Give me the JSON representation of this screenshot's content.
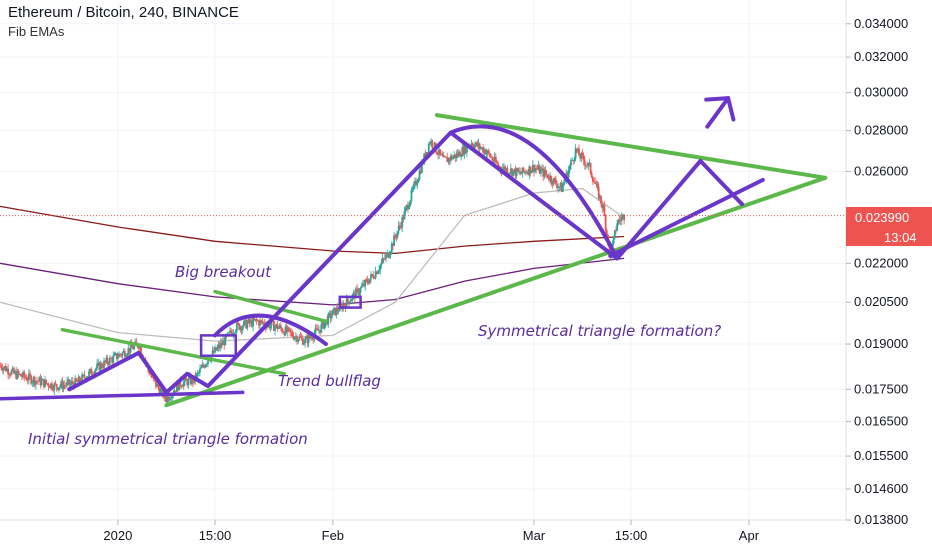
{
  "header": {
    "title": "Ethereum / Bitcoin, 240, BINANCE",
    "subtitle": "Fib EMAs"
  },
  "price_axis": {
    "ticks": [
      "0.034000",
      "0.032000",
      "0.030000",
      "0.028000",
      "0.026000",
      "0.022000",
      "0.020500",
      "0.019000",
      "0.017500",
      "0.016500",
      "0.015500",
      "0.014600",
      "0.013800"
    ],
    "current_price": "0.023990",
    "countdown": "13:04"
  },
  "time_axis": {
    "ticks": [
      "2020",
      "15:00",
      "Feb",
      "Mar",
      "15:00",
      "Apr"
    ]
  },
  "annotations": {
    "big_breakout": "Big breakout",
    "trend_bullflag": "Trend bullflag",
    "symmetrical_triangle": "Symmetrical triangle formation?",
    "initial_triangle": "Initial symmetrical triangle formation"
  },
  "colors": {
    "up": "#26a69a",
    "down": "#ef5350",
    "pattern_purple": "#6a35c9",
    "trendline_green": "#5cb84a",
    "ema_dark_red": "#8b1a1a",
    "ema_purple": "#6b1f7a",
    "ema_grey": "#bdbdbd",
    "price_line": "#ef5350"
  },
  "chart_data": {
    "type": "candlestick",
    "symbol": "ETHBTC",
    "interval": "240",
    "exchange": "BINANCE",
    "y_scale": "log",
    "ylim": [
      0.0138,
      0.0355
    ],
    "x_range": [
      "2019-12-15",
      "2020-04-15"
    ],
    "x_ticks": [
      {
        "date": "2020-01-01",
        "label": "2020"
      },
      {
        "date": "2020-01-15",
        "label": "15:00"
      },
      {
        "date": "2020-02-01",
        "label": "Feb"
      },
      {
        "date": "2020-03-01",
        "label": "Mar"
      },
      {
        "date": "2020-03-15",
        "label": "15:00"
      },
      {
        "date": "2020-04-01",
        "label": "Apr"
      }
    ],
    "last_price": 0.02399,
    "price_path": [
      [
        "2019-12-15",
        0.0183
      ],
      [
        "2019-12-17",
        0.018
      ],
      [
        "2019-12-20",
        0.0178
      ],
      [
        "2019-12-23",
        0.0176
      ],
      [
        "2019-12-26",
        0.0177
      ],
      [
        "2019-12-29",
        0.0182
      ],
      [
        "2020-01-01",
        0.0186
      ],
      [
        "2020-01-04",
        0.019
      ],
      [
        "2020-01-06",
        0.0178
      ],
      [
        "2020-01-08",
        0.0172
      ],
      [
        "2020-01-10",
        0.0177
      ],
      [
        "2020-01-12",
        0.0178
      ],
      [
        "2020-01-14",
        0.0185
      ],
      [
        "2020-01-16",
        0.019
      ],
      [
        "2020-01-18",
        0.0196
      ],
      [
        "2020-01-21",
        0.0198
      ],
      [
        "2020-01-24",
        0.0196
      ],
      [
        "2020-01-28",
        0.0191
      ],
      [
        "2020-01-30",
        0.0195
      ],
      [
        "2020-02-01",
        0.0201
      ],
      [
        "2020-02-03",
        0.0205
      ],
      [
        "2020-02-05",
        0.021
      ],
      [
        "2020-02-07",
        0.0216
      ],
      [
        "2020-02-09",
        0.0224
      ],
      [
        "2020-02-11",
        0.0238
      ],
      [
        "2020-02-13",
        0.0255
      ],
      [
        "2020-02-15",
        0.0275
      ],
      [
        "2020-02-17",
        0.0265
      ],
      [
        "2020-02-19",
        0.0268
      ],
      [
        "2020-02-21",
        0.0274
      ],
      [
        "2020-02-23",
        0.027
      ],
      [
        "2020-02-25",
        0.0262
      ],
      [
        "2020-02-28",
        0.0259
      ],
      [
        "2020-03-01",
        0.0262
      ],
      [
        "2020-03-03",
        0.0258
      ],
      [
        "2020-03-05",
        0.0252
      ],
      [
        "2020-03-07",
        0.027
      ],
      [
        "2020-03-09",
        0.0262
      ],
      [
        "2020-03-11",
        0.0243
      ],
      [
        "2020-03-12",
        0.0222
      ],
      [
        "2020-03-13",
        0.0237
      ],
      [
        "2020-03-14",
        0.02399
      ]
    ],
    "ema_red": [
      [
        "2019-12-15",
        0.0244
      ],
      [
        "2020-01-01",
        0.0235
      ],
      [
        "2020-01-15",
        0.0229
      ],
      [
        "2020-02-01",
        0.0225
      ],
      [
        "2020-02-10",
        0.0224
      ],
      [
        "2020-02-20",
        0.0227
      ],
      [
        "2020-03-01",
        0.0229
      ],
      [
        "2020-03-14",
        0.0231
      ]
    ],
    "ema_purple": [
      [
        "2019-12-15",
        0.022
      ],
      [
        "2020-01-01",
        0.0212
      ],
      [
        "2020-01-15",
        0.0207
      ],
      [
        "2020-02-01",
        0.0204
      ],
      [
        "2020-02-10",
        0.0206
      ],
      [
        "2020-02-20",
        0.0213
      ],
      [
        "2020-03-01",
        0.0218
      ],
      [
        "2020-03-14",
        0.0222
      ]
    ],
    "ema_grey": [
      [
        "2019-12-15",
        0.0205
      ],
      [
        "2020-01-01",
        0.0194
      ],
      [
        "2020-01-15",
        0.0191
      ],
      [
        "2020-02-01",
        0.0193
      ],
      [
        "2020-02-10",
        0.0205
      ],
      [
        "2020-02-20",
        0.024
      ],
      [
        "2020-03-01",
        0.025
      ],
      [
        "2020-03-08",
        0.0252
      ],
      [
        "2020-03-14",
        0.0239
      ]
    ],
    "drawings": {
      "purple_path": [
        [
          "2019-12-25",
          0.0175
        ],
        [
          "2020-01-04",
          0.0187
        ],
        [
          "2020-01-08",
          0.0174
        ],
        [
          "2020-01-11",
          0.018
        ],
        [
          "2020-01-14",
          0.0176
        ],
        [
          "2020-02-18",
          0.0279
        ],
        [
          "2020-03-13",
          0.0222
        ],
        [
          "2020-03-25",
          0.0265
        ],
        [
          "2020-03-31",
          0.0245
        ]
      ],
      "purple_arrow": [
        [
          "2020-03-26",
          0.0282
        ],
        [
          "2020-03-29",
          0.0297
        ]
      ],
      "green_upper": [
        [
          "2020-02-16",
          0.0288
        ],
        [
          "2020-04-12",
          0.0257
        ]
      ],
      "green_lower": [
        [
          "2020-01-08",
          0.017
        ],
        [
          "2020-04-12",
          0.0257
        ]
      ],
      "initial_upper": [
        [
          "2019-12-24",
          0.0195
        ],
        [
          "2020-01-25",
          0.018
        ]
      ],
      "initial_lower": [
        [
          "2019-12-15",
          0.0172
        ],
        [
          "2020-01-19",
          0.0174
        ]
      ],
      "flag_upper": [
        [
          "2020-01-15",
          0.0209
        ],
        [
          "2020-01-31",
          0.0198
        ]
      ],
      "flag_curve": [
        [
          "2020-01-15",
          0.0193
        ],
        [
          "2020-01-22",
          0.02
        ],
        [
          "2020-01-31",
          0.019
        ]
      ],
      "triangle_lower_purple": [
        [
          "2020-03-12",
          0.0223
        ],
        [
          "2020-04-03",
          0.0256
        ]
      ],
      "triangle_inner": [
        [
          "2020-03-13",
          0.0224
        ],
        [
          "2020-04-03",
          0.0255
        ]
      ],
      "curve_top": [
        [
          "2020-02-18",
          0.0279
        ],
        [
          "2020-03-01",
          0.0272
        ],
        [
          "2020-03-13",
          0.0222
        ]
      ],
      "boxes": [
        {
          "from": "2020-01-13",
          "to": "2020-01-18",
          "low": 0.0186,
          "high": 0.0193
        },
        {
          "from": "2020-02-02",
          "to": "2020-02-05",
          "low": 0.0203,
          "high": 0.0207
        }
      ]
    },
    "current_price_label": "0.023990",
    "countdown_label": "13:04"
  }
}
